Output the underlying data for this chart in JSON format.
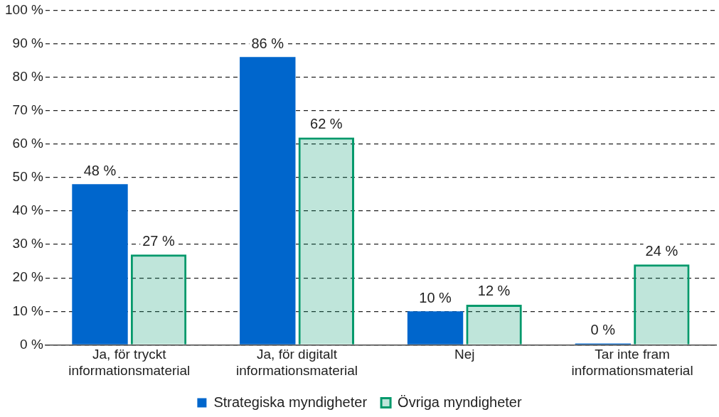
{
  "chart_data": {
    "type": "bar",
    "categories": [
      "Ja, för tryckt informationsmaterial",
      "Ja, för digitalt informationsmaterial",
      "Nej",
      "Tar inte fram informationsmaterial"
    ],
    "series": [
      {
        "name": "Strategiska myndigheter",
        "color": "#0066cc",
        "values": [
          48,
          86,
          10,
          0
        ],
        "value_labels": [
          "48 %",
          "86 %",
          "10 %",
          "0 %"
        ]
      },
      {
        "name": "Övriga myndigheter",
        "color": "#00996b",
        "values": [
          27,
          62,
          12,
          24
        ],
        "value_labels": [
          "27 %",
          "62 %",
          "12 %",
          "24 %"
        ]
      }
    ],
    "ylim": [
      0,
      100
    ],
    "yticks": [
      {
        "value": 0,
        "label": "0 %"
      },
      {
        "value": 10,
        "label": "10 %"
      },
      {
        "value": 20,
        "label": "20 %"
      },
      {
        "value": 30,
        "label": "30 %"
      },
      {
        "value": 40,
        "label": "40 %"
      },
      {
        "value": 50,
        "label": "50 %"
      },
      {
        "value": 60,
        "label": "60 %"
      },
      {
        "value": 70,
        "label": "70 %"
      },
      {
        "value": 80,
        "label": "80 %"
      },
      {
        "value": 90,
        "label": "90 %"
      },
      {
        "value": 100,
        "label": "100 %"
      }
    ],
    "grid": "y",
    "legend": "bottom"
  }
}
